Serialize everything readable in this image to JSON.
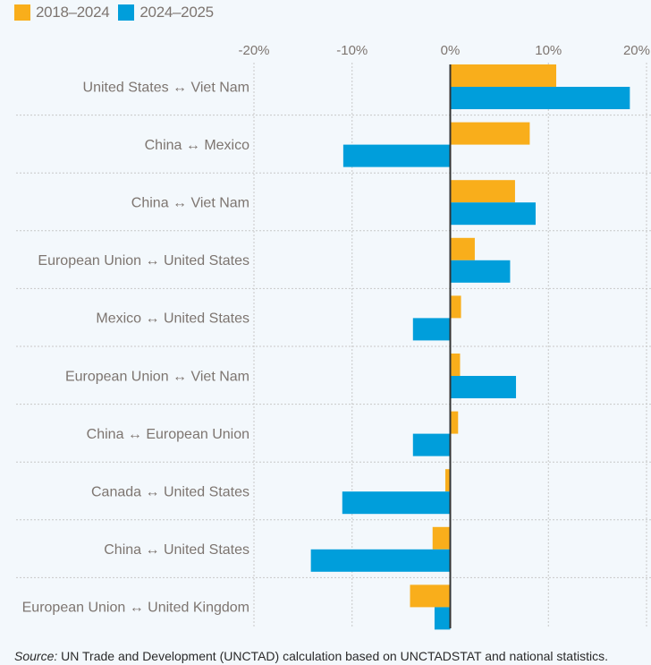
{
  "chart_data": {
    "type": "bar",
    "orientation": "horizontal",
    "title": "",
    "xlabel": "",
    "ylabel": "",
    "xlim": [
      -20,
      20
    ],
    "x_ticks": [
      -20,
      -10,
      0,
      10,
      20
    ],
    "x_tick_labels": [
      "-20%",
      "-10%",
      "0%",
      "10%",
      "20%"
    ],
    "grid": true,
    "legend_position": "top-left",
    "categories": [
      "United States ↔ Viet Nam",
      "China ↔ Mexico",
      "China ↔ Viet Nam",
      "European Union ↔ United States",
      "Mexico ↔ United States",
      "European Union ↔ Viet Nam",
      "China ↔ European Union",
      "Canada ↔ United States",
      "China ↔ United States",
      "European Union ↔ United Kingdom"
    ],
    "series": [
      {
        "name": "2018–2024",
        "color": "#f9ae1b",
        "values": [
          10.8,
          8.1,
          6.6,
          2.5,
          1.1,
          1.0,
          0.8,
          -0.5,
          -1.8,
          -4.1
        ]
      },
      {
        "name": "2024–2025",
        "color": "#009edb",
        "values": [
          18.3,
          -10.9,
          8.7,
          6.1,
          -3.8,
          6.7,
          -3.8,
          -11.0,
          -14.2,
          -1.6
        ]
      }
    ]
  },
  "source": {
    "prefix": "Source:",
    "text": " UN Trade and Development (UNCTAD) calculation based on UNCTADSTAT and national statistics."
  }
}
